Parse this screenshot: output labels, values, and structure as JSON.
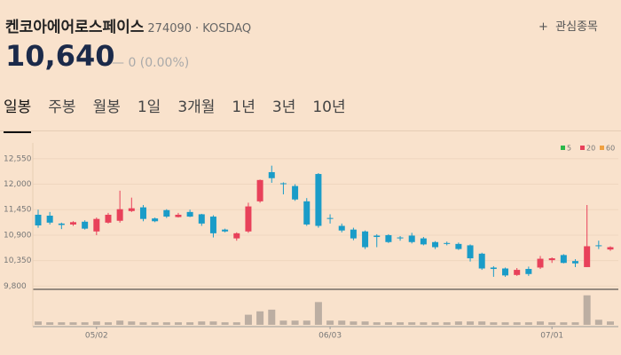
{
  "header": {
    "name": "켄코아에어로스페이스",
    "code": "274090",
    "market": "KOSDAQ",
    "watch": "관심종목"
  },
  "price": {
    "value": "10,640",
    "change": "0 (0.00%)"
  },
  "tabs": [
    "일봉",
    "주봉",
    "월봉",
    "1일",
    "3개월",
    "1년",
    "3년",
    "10년"
  ],
  "chart_data": {
    "type": "candlestick",
    "categories": [
      null,
      null,
      null,
      null,
      null,
      "05/02",
      null,
      null,
      null,
      null,
      null,
      null,
      null,
      null,
      null,
      null,
      null,
      null,
      null,
      null,
      null,
      null,
      null,
      null,
      null,
      "06/03",
      null,
      null,
      null,
      null,
      null,
      null,
      null,
      null,
      null,
      null,
      null,
      null,
      null,
      null,
      null,
      null,
      null,
      null,
      "07/01",
      null,
      null,
      null,
      null,
      null
    ],
    "open": [
      11340,
      11320,
      11150,
      11130,
      11190,
      10980,
      11170,
      11210,
      11420,
      11500,
      11260,
      11440,
      11290,
      11400,
      11350,
      11300,
      11020,
      10830,
      10980,
      11630,
      12260,
      12020,
      11960,
      11630,
      12220,
      11270,
      11100,
      11020,
      10980,
      10890,
      10900,
      10850,
      10890,
      10830,
      10750,
      10730,
      10710,
      10680,
      10500,
      10200,
      10180,
      10040,
      10170,
      10200,
      10360,
      10470,
      10340,
      10210,
      10680,
      10590
    ],
    "high": [
      11450,
      11400,
      11170,
      11200,
      11220,
      11280,
      11380,
      11860,
      11710,
      11550,
      11280,
      11460,
      11380,
      11450,
      11360,
      11330,
      11040,
      10960,
      11600,
      12100,
      12400,
      12040,
      12000,
      11700,
      12240,
      11350,
      11150,
      11060,
      11000,
      10920,
      10920,
      10880,
      10950,
      10860,
      10770,
      10760,
      10740,
      10700,
      10520,
      10230,
      10200,
      10190,
      10220,
      10450,
      10420,
      10490,
      10380,
      11550,
      10780,
      10660
    ],
    "low": [
      11060,
      11130,
      11030,
      11100,
      11020,
      10900,
      11150,
      11170,
      11400,
      11200,
      11180,
      11270,
      11280,
      11290,
      11100,
      10850,
      10960,
      10780,
      10950,
      11600,
      12030,
      11780,
      11640,
      11100,
      11060,
      11150,
      10960,
      10790,
      10600,
      10640,
      10730,
      10780,
      10720,
      10680,
      10600,
      10680,
      10580,
      10330,
      10150,
      10000,
      10000,
      10020,
      10020,
      10170,
      10300,
      10290,
      10210,
      10210,
      10600,
      10560
    ],
    "close": [
      11110,
      11170,
      11120,
      11180,
      11040,
      11250,
      11340,
      11460,
      11480,
      11250,
      11200,
      11300,
      11340,
      11300,
      11150,
      10940,
      10980,
      10940,
      11520,
      12090,
      12130,
      12000,
      11670,
      11130,
      11100,
      11250,
      11000,
      10830,
      10640,
      10860,
      10750,
      10830,
      10750,
      10700,
      10640,
      10710,
      10600,
      10400,
      10180,
      10170,
      10030,
      10150,
      10060,
      10390,
      10400,
      10300,
      10290,
      10660,
      10670,
      10640
    ],
    "volume": [
      4000,
      3000,
      3000,
      3000,
      3000,
      4000,
      3000,
      5000,
      4000,
      3000,
      3000,
      3000,
      3000,
      3000,
      4000,
      4000,
      3000,
      3000,
      12000,
      16000,
      18000,
      5000,
      5000,
      5000,
      27000,
      5000,
      5000,
      4000,
      4000,
      3000,
      3000,
      3000,
      3000,
      3000,
      3000,
      3000,
      4000,
      4000,
      4000,
      3000,
      3000,
      3000,
      3000,
      4000,
      3000,
      3000,
      3000,
      35000,
      6000,
      4000
    ],
    "up_color": "#e8415a",
    "down_color": "#1a9cc8",
    "volume_color": "#bcaea2",
    "ylim": [
      9730,
      12700
    ],
    "yticks": [
      {
        "value": 9800,
        "label": "9,800"
      },
      {
        "value": 10350,
        "label": "10,350"
      },
      {
        "value": 10900,
        "label": "10,900"
      },
      {
        "value": 11450,
        "label": "11,450"
      },
      {
        "value": 12000,
        "label": "12,000"
      },
      {
        "value": 12550,
        "label": "12,550"
      }
    ],
    "volume_lim": [
      0,
      40000
    ],
    "grid": true,
    "legend": [
      {
        "name": "5",
        "color": "#2bb84a"
      },
      {
        "name": "20",
        "color": "#e8415a"
      },
      {
        "name": "60",
        "color": "#f0a040"
      }
    ]
  }
}
